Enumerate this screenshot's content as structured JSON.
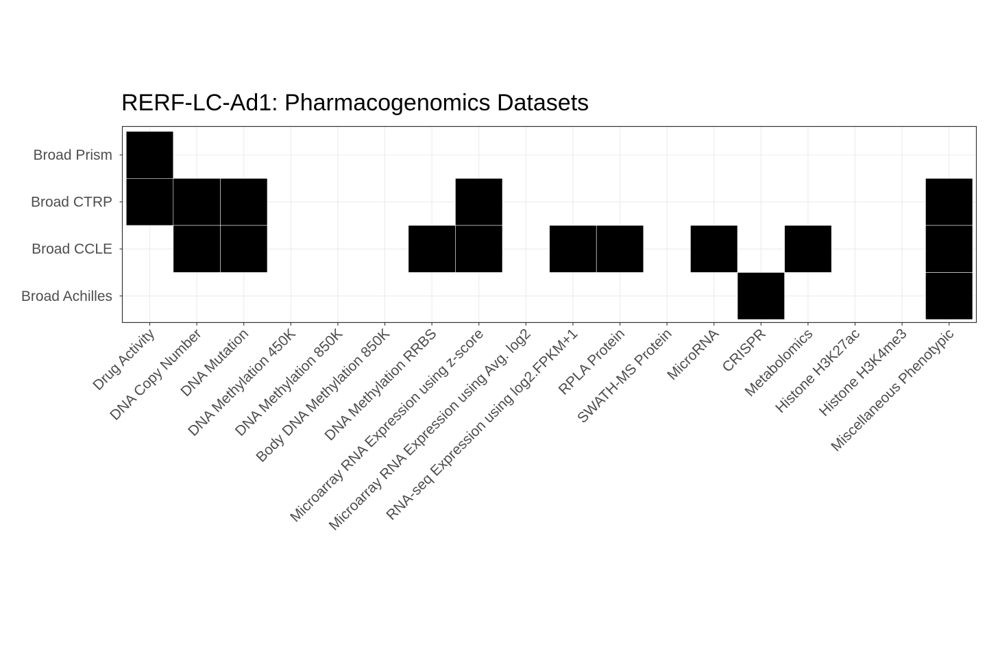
{
  "chart_data": {
    "type": "heatmap",
    "title": "RERF-LC-Ad1: Pharmacogenomics Datasets",
    "xlabel": "",
    "ylabel": "",
    "x_categories": [
      "Drug Activity",
      "DNA Copy Number",
      "DNA Mutation",
      "DNA Methylation 450K",
      "DNA Methylation 850K",
      "Body DNA Methylation 850K",
      "DNA Methylation RRBS",
      "Microarray RNA Expression using z-score",
      "Microarray RNA Expression using Avg. log2",
      "RNA-seq Expression using log2.FPKM+1",
      "RPLA Protein",
      "SWATH-MS Protein",
      "MicroRNA",
      "CRISPR",
      "Metabolomics",
      "Histone H3K27ac",
      "Histone H3K4me3",
      "Miscellaneous Phenotypic"
    ],
    "y_categories": [
      "Broad Prism",
      "Broad CTRP",
      "Broad CCLE",
      "Broad Achilles"
    ],
    "cells": [
      {
        "y": "Broad Prism",
        "x": "Drug Activity"
      },
      {
        "y": "Broad CTRP",
        "x": "Drug Activity"
      },
      {
        "y": "Broad CTRP",
        "x": "DNA Copy Number"
      },
      {
        "y": "Broad CTRP",
        "x": "DNA Mutation"
      },
      {
        "y": "Broad CTRP",
        "x": "Microarray RNA Expression using z-score"
      },
      {
        "y": "Broad CTRP",
        "x": "Miscellaneous Phenotypic"
      },
      {
        "y": "Broad CCLE",
        "x": "DNA Copy Number"
      },
      {
        "y": "Broad CCLE",
        "x": "DNA Mutation"
      },
      {
        "y": "Broad CCLE",
        "x": "DNA Methylation RRBS"
      },
      {
        "y": "Broad CCLE",
        "x": "Microarray RNA Expression using z-score"
      },
      {
        "y": "Broad CCLE",
        "x": "RNA-seq Expression using log2.FPKM+1"
      },
      {
        "y": "Broad CCLE",
        "x": "RPLA Protein"
      },
      {
        "y": "Broad CCLE",
        "x": "MicroRNA"
      },
      {
        "y": "Broad CCLE",
        "x": "Metabolomics"
      },
      {
        "y": "Broad CCLE",
        "x": "Miscellaneous Phenotypic"
      },
      {
        "y": "Broad Achilles",
        "x": "CRISPR"
      },
      {
        "y": "Broad Achilles",
        "x": "Miscellaneous Phenotypic"
      }
    ],
    "fill_color": "#000000",
    "grid": true,
    "legend": "none"
  }
}
